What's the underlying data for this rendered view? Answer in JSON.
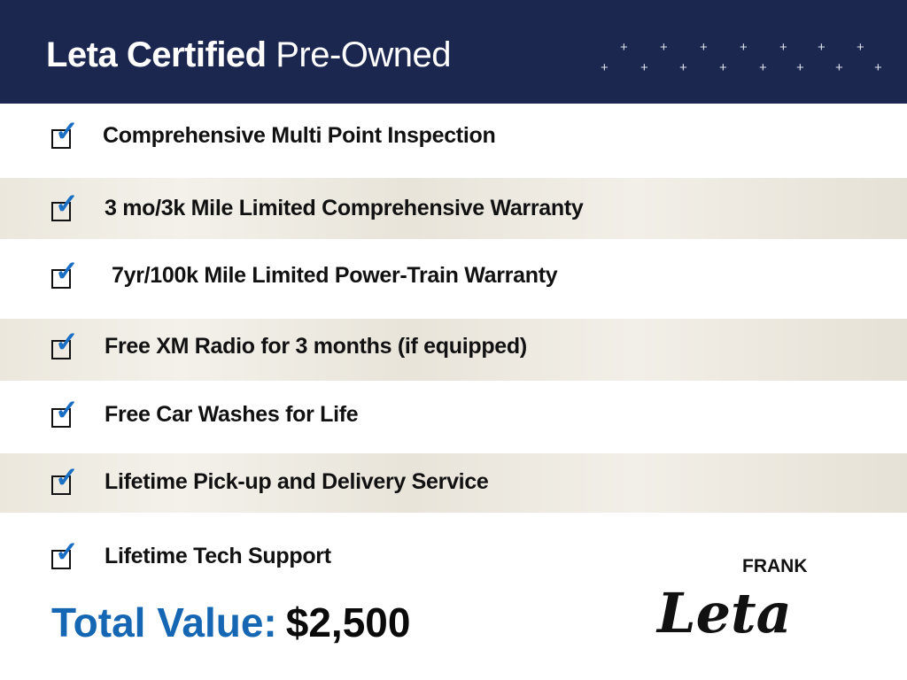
{
  "header": {
    "title_bold": "Leta Certified",
    "title_light": "Pre-Owned"
  },
  "items": [
    {
      "label": "Comprehensive Multi Point Inspection"
    },
    {
      "label": "3 mo/3k Mile Limited Comprehensive Warranty"
    },
    {
      "label": "7yr/100k Mile Limited Power-Train Warranty"
    },
    {
      "label": "Free XM Radio for 3 months (if equipped)"
    },
    {
      "label": "Free Car Washes for Life"
    },
    {
      "label": "Lifetime Pick-up and Delivery Service"
    },
    {
      "label": "Lifetime Tech Support"
    }
  ],
  "total": {
    "label": "Total Value:",
    "value": "$2,500"
  },
  "logo": {
    "small": "FRANK",
    "script": "Leta"
  },
  "colors": {
    "header": "#1c2750",
    "accent": "#1567b3",
    "check": "#1a6fc4"
  },
  "icons": {
    "check": "checkbox-checked-icon"
  }
}
